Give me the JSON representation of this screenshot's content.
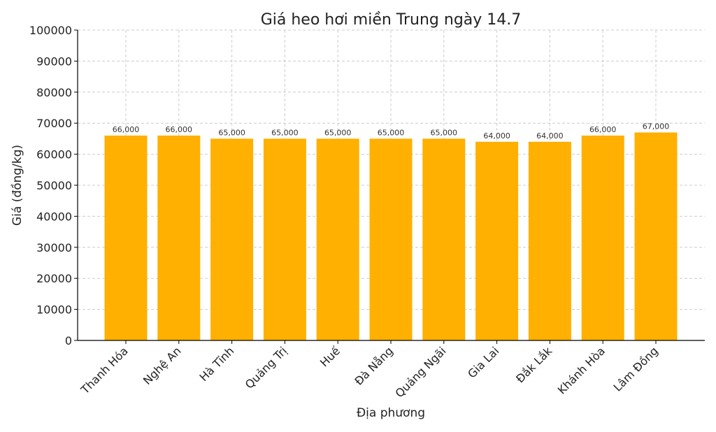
{
  "chart_data": {
    "type": "bar",
    "title": "Giá heo hơi miền Trung ngày 14.7",
    "xlabel": "Địa phương",
    "ylabel": "Giá (đồng/kg)",
    "categories": [
      "Thanh Hóa",
      "Nghệ An",
      "Hà Tĩnh",
      "Quảng Trị",
      "Huế",
      "Đà Nẵng",
      "Quảng Ngãi",
      "Gia Lai",
      "Đắk Lắk",
      "Khánh Hòa",
      "Lâm Đồng"
    ],
    "values": [
      66000,
      66000,
      65000,
      65000,
      65000,
      65000,
      65000,
      64000,
      64000,
      66000,
      67000
    ],
    "value_labels": [
      "66,000",
      "66,000",
      "65,000",
      "65,000",
      "65,000",
      "65,000",
      "65,000",
      "64,000",
      "64,000",
      "66,000",
      "67,000"
    ],
    "ylim": [
      0,
      100000
    ],
    "yticks": [
      "0",
      "10000",
      "20000",
      "30000",
      "40000",
      "50000",
      "60000",
      "70000",
      "80000",
      "90000",
      "100000"
    ],
    "grid": true,
    "bar_color": "#FFB000",
    "grid_color": "#cccccc",
    "axis_color": "#000000",
    "label_color": "#333333"
  }
}
